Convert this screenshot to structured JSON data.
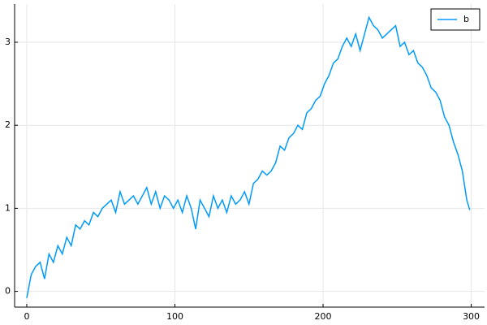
{
  "chart_data": {
    "type": "line",
    "x": [
      0,
      3,
      6,
      9,
      12,
      15,
      18,
      21,
      24,
      27,
      30,
      33,
      36,
      39,
      42,
      45,
      48,
      51,
      54,
      57,
      60,
      63,
      66,
      69,
      72,
      75,
      78,
      81,
      84,
      87,
      90,
      93,
      96,
      99,
      102,
      105,
      108,
      111,
      114,
      117,
      120,
      123,
      126,
      129,
      132,
      135,
      138,
      141,
      144,
      147,
      150,
      153,
      156,
      159,
      162,
      165,
      168,
      171,
      174,
      177,
      180,
      183,
      186,
      189,
      192,
      195,
      198,
      201,
      204,
      207,
      210,
      213,
      216,
      219,
      222,
      225,
      228,
      231,
      234,
      237,
      240,
      243,
      246,
      249,
      252,
      255,
      258,
      261,
      264,
      267,
      270,
      273,
      276,
      279,
      282,
      285,
      288,
      291,
      294,
      297,
      299
    ],
    "series": [
      {
        "name": "b",
        "color": "#009af9",
        "values": [
          -0.08,
          0.2,
          0.3,
          0.35,
          0.15,
          0.45,
          0.35,
          0.55,
          0.45,
          0.65,
          0.55,
          0.8,
          0.75,
          0.85,
          0.8,
          0.95,
          0.9,
          1.0,
          1.05,
          1.1,
          0.95,
          1.2,
          1.05,
          1.1,
          1.15,
          1.05,
          1.15,
          1.25,
          1.05,
          1.2,
          1.0,
          1.15,
          1.1,
          1.0,
          1.1,
          0.95,
          1.15,
          1.0,
          0.75,
          1.1,
          1.0,
          0.9,
          1.15,
          1.0,
          1.1,
          0.95,
          1.15,
          1.05,
          1.1,
          1.2,
          1.05,
          1.3,
          1.35,
          1.45,
          1.4,
          1.45,
          1.55,
          1.75,
          1.7,
          1.85,
          1.9,
          2.0,
          1.95,
          2.15,
          2.2,
          2.3,
          2.35,
          2.5,
          2.6,
          2.75,
          2.8,
          2.95,
          3.05,
          2.95,
          3.1,
          2.9,
          3.1,
          3.3,
          3.2,
          3.15,
          3.05,
          3.1,
          3.15,
          3.2,
          2.95,
          3.0,
          2.85,
          2.9,
          2.75,
          2.7,
          2.6,
          2.45,
          2.4,
          2.3,
          2.1,
          2.0,
          1.8,
          1.65,
          1.45,
          1.1,
          0.98
        ]
      }
    ],
    "xlim": [
      -8.2,
      309
    ],
    "ylim": [
      -0.19,
      3.46
    ],
    "xticks": [
      0,
      100,
      200,
      300
    ],
    "yticks": [
      0,
      1,
      2,
      3
    ],
    "grid": true,
    "legend": "top-right"
  }
}
